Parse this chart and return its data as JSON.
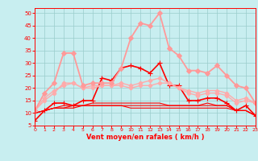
{
  "x": [
    0,
    1,
    2,
    3,
    4,
    5,
    6,
    7,
    8,
    9,
    10,
    11,
    12,
    13,
    14,
    15,
    16,
    17,
    18,
    19,
    20,
    21,
    22,
    23
  ],
  "series": [
    {
      "color": "#ff0000",
      "lw": 0.8,
      "marker": null,
      "ms": 0,
      "values": [
        10,
        11,
        12,
        12,
        12,
        13,
        13,
        13,
        13,
        13,
        12,
        12,
        12,
        12,
        12,
        12,
        12,
        12,
        12,
        12,
        12,
        11,
        11,
        9
      ]
    },
    {
      "color": "#ff0000",
      "lw": 0.8,
      "marker": null,
      "ms": 0,
      "values": [
        10,
        11,
        12,
        12,
        13,
        13,
        13,
        13,
        13,
        13,
        13,
        13,
        13,
        13,
        13,
        13,
        13,
        13,
        13,
        13,
        13,
        11,
        11,
        9
      ]
    },
    {
      "color": "#ff0000",
      "lw": 0.8,
      "marker": null,
      "ms": 0,
      "values": [
        10,
        11,
        12,
        13,
        13,
        13,
        14,
        14,
        14,
        14,
        14,
        14,
        14,
        14,
        13,
        13,
        13,
        13,
        14,
        13,
        13,
        11,
        11,
        9
      ]
    },
    {
      "color": "#ff0000",
      "lw": 1.2,
      "marker": "+",
      "ms": 4,
      "values": [
        7,
        11,
        14,
        14,
        13,
        15,
        15,
        24,
        23,
        28,
        29,
        28,
        26,
        30,
        21,
        21,
        15,
        15,
        16,
        16,
        14,
        11,
        13,
        9
      ]
    },
    {
      "color": "#ffaaaa",
      "lw": 1.0,
      "marker": "D",
      "ms": 2.5,
      "values": [
        11,
        15,
        18,
        22,
        22,
        20,
        20,
        21,
        21,
        21,
        20,
        21,
        21,
        22,
        22,
        20,
        18,
        17,
        18,
        18,
        17,
        14,
        15,
        14
      ]
    },
    {
      "color": "#ffaaaa",
      "lw": 1.0,
      "marker": "D",
      "ms": 2.5,
      "values": [
        11,
        16,
        19,
        21,
        22,
        20,
        21,
        21,
        21,
        22,
        21,
        22,
        23,
        24,
        22,
        20,
        19,
        18,
        19,
        19,
        18,
        15,
        16,
        14
      ]
    },
    {
      "color": "#ff9999",
      "lw": 1.3,
      "marker": "D",
      "ms": 3,
      "values": [
        11,
        18,
        22,
        34,
        34,
        21,
        22,
        22,
        22,
        28,
        40,
        46,
        45,
        50,
        36,
        33,
        27,
        27,
        26,
        29,
        25,
        21,
        20,
        14
      ]
    }
  ],
  "ylim": [
    5,
    52
  ],
  "xlim": [
    0,
    23
  ],
  "yticks": [
    5,
    10,
    15,
    20,
    25,
    30,
    35,
    40,
    45,
    50
  ],
  "xticks": [
    0,
    1,
    2,
    3,
    4,
    5,
    6,
    7,
    8,
    9,
    10,
    11,
    12,
    13,
    14,
    15,
    16,
    17,
    18,
    19,
    20,
    21,
    22,
    23
  ],
  "xlabel": "Vent moyen/en rafales ( km/h )",
  "bg_color": "#c8eef0",
  "grid_color": "#99cccc",
  "tick_color": "#ff0000",
  "label_color": "#ff0000",
  "spine_color": "#ff0000"
}
